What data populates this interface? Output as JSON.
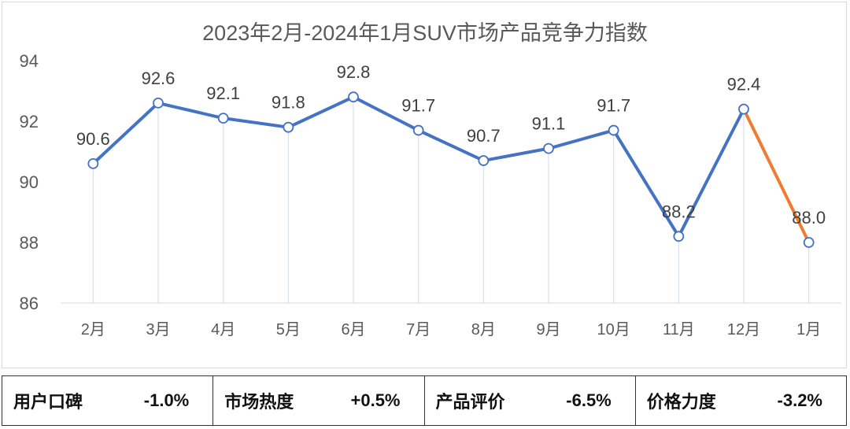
{
  "chart_data": {
    "type": "line",
    "title": "2023年2月-2024年1月SUV市场产品竞争力指数",
    "categories": [
      "2月",
      "3月",
      "4月",
      "5月",
      "6月",
      "7月",
      "8月",
      "9月",
      "10月",
      "11月",
      "12月",
      "1月"
    ],
    "values": [
      90.6,
      92.6,
      92.1,
      91.8,
      92.8,
      91.7,
      90.7,
      91.1,
      91.7,
      88.2,
      92.4,
      88.0
    ],
    "labels": [
      "90.6",
      "92.6",
      "92.1",
      "91.8",
      "92.8",
      "91.7",
      "90.7",
      "91.1",
      "91.7",
      "88.2",
      "92.4",
      "88.0"
    ],
    "ylim": [
      86,
      94
    ],
    "yticks": [
      86,
      88,
      90,
      92,
      94
    ],
    "grid": false,
    "colors": {
      "main": "#4472c4",
      "last_segment": "#ed7d31",
      "drop_line": "#d6e1f0"
    }
  },
  "metrics": [
    {
      "name": "用户口碑",
      "value": "-1.0%"
    },
    {
      "name": "市场热度",
      "value": "+0.5%"
    },
    {
      "name": "产品评价",
      "value": "-6.5%"
    },
    {
      "name": "价格力度",
      "value": "-3.2%"
    }
  ]
}
